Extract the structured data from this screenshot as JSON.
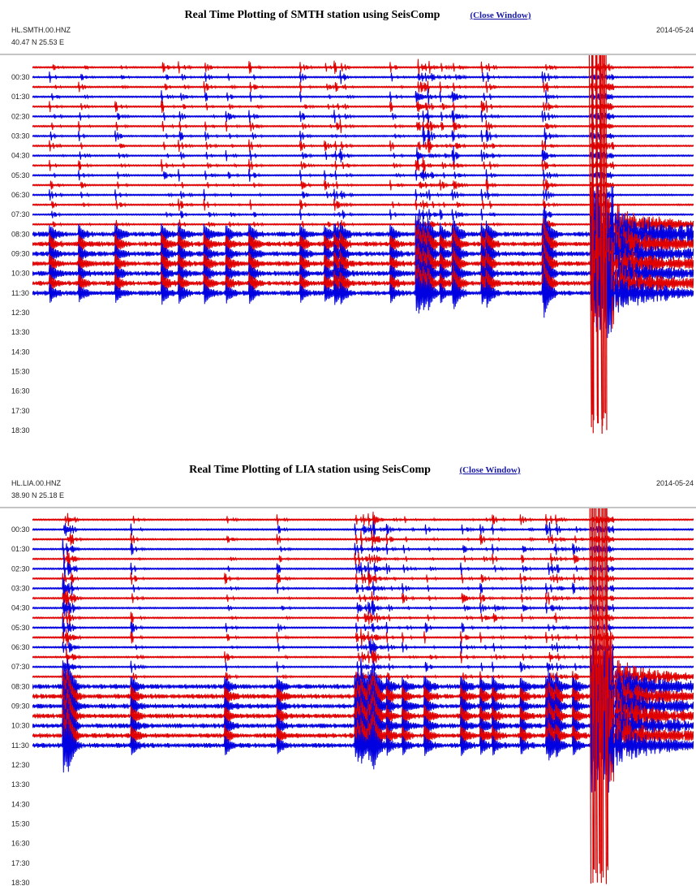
{
  "panels": [
    {
      "title": "Real Time Plotting of SMTH station using SeisComp",
      "link": "(Close Window)",
      "station": "HL.SMTH.00.HNZ",
      "coords": "40.47 N 25.53 E",
      "date": "2014-05-24",
      "times": [
        "00:30",
        "01:30",
        "02:30",
        "03:30",
        "04:30",
        "05:30",
        "06:30",
        "07:30",
        "08:30",
        "09:30",
        "10:30",
        "11:30",
        "12:30",
        "13:30",
        "14:30",
        "15:30",
        "16:30",
        "17:30",
        "18:30"
      ]
    },
    {
      "title": "Real Time Plotting of LIA station using SeisComp",
      "link": "(Close Window)",
      "station": "HL.LIA.00.HNZ",
      "coords": "38.90 N 25.18 E",
      "date": "2014-05-24",
      "times": [
        "00:30",
        "01:30",
        "02:30",
        "03:30",
        "04:30",
        "05:30",
        "06:30",
        "07:30",
        "08:30",
        "09:30",
        "10:30",
        "11:30",
        "12:30",
        "13:30",
        "14:30",
        "15:30",
        "16:30",
        "17:30",
        "18:30"
      ]
    }
  ]
}
